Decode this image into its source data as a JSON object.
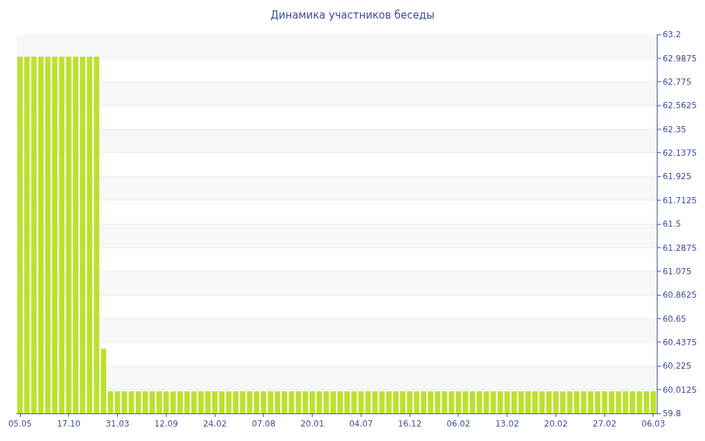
{
  "chart_data": {
    "type": "bar",
    "title": "Динамика участников беседы",
    "categories": [
      "05.05",
      null,
      null,
      null,
      null,
      null,
      null,
      "17.10",
      null,
      null,
      null,
      null,
      null,
      null,
      "31.03",
      null,
      null,
      null,
      null,
      null,
      null,
      "12.09",
      null,
      null,
      null,
      null,
      null,
      null,
      "24.02",
      null,
      null,
      null,
      null,
      null,
      null,
      "07.08",
      null,
      null,
      null,
      null,
      null,
      null,
      "20.01",
      null,
      null,
      null,
      null,
      null,
      null,
      "04.07",
      null,
      null,
      null,
      null,
      null,
      null,
      "16.12",
      null,
      null,
      null,
      null,
      null,
      null,
      "06.02",
      null,
      null,
      null,
      null,
      null,
      null,
      "13.02",
      null,
      null,
      null,
      null,
      null,
      null,
      "20.02",
      null,
      null,
      null,
      null,
      null,
      null,
      "27.02",
      null,
      null,
      null,
      null,
      null,
      null,
      "06.03"
    ],
    "values": [
      63,
      63,
      63,
      63,
      63,
      63,
      63,
      63,
      63,
      63,
      63,
      63,
      60.38,
      60,
      60,
      60,
      60,
      60,
      60,
      60,
      60,
      60,
      60,
      60,
      60,
      60,
      60,
      60,
      60,
      60,
      60,
      60,
      60,
      60,
      60,
      60,
      60,
      60,
      60,
      60,
      60,
      60,
      60,
      60,
      60,
      60,
      60,
      60,
      60,
      60,
      60,
      60,
      60,
      60,
      60,
      60,
      60,
      60,
      60,
      60,
      60,
      60,
      60,
      60,
      60,
      60,
      60,
      60,
      60,
      60,
      60,
      60,
      60,
      60,
      60,
      60,
      60,
      60,
      60,
      60,
      60,
      60,
      60,
      60,
      60,
      60,
      60,
      60,
      60,
      60,
      60,
      60
    ],
    "color": "#bde02e",
    "ylim": [
      59.8,
      63.2
    ],
    "yticks": [
      59.8,
      60.0125,
      60.225,
      60.4375,
      60.65,
      60.8625,
      61.075,
      61.2875,
      61.5,
      61.7125,
      61.925,
      62.1375,
      62.35,
      62.5625,
      62.775,
      62.9875,
      63.2
    ],
    "grid": "y",
    "legend": false
  }
}
